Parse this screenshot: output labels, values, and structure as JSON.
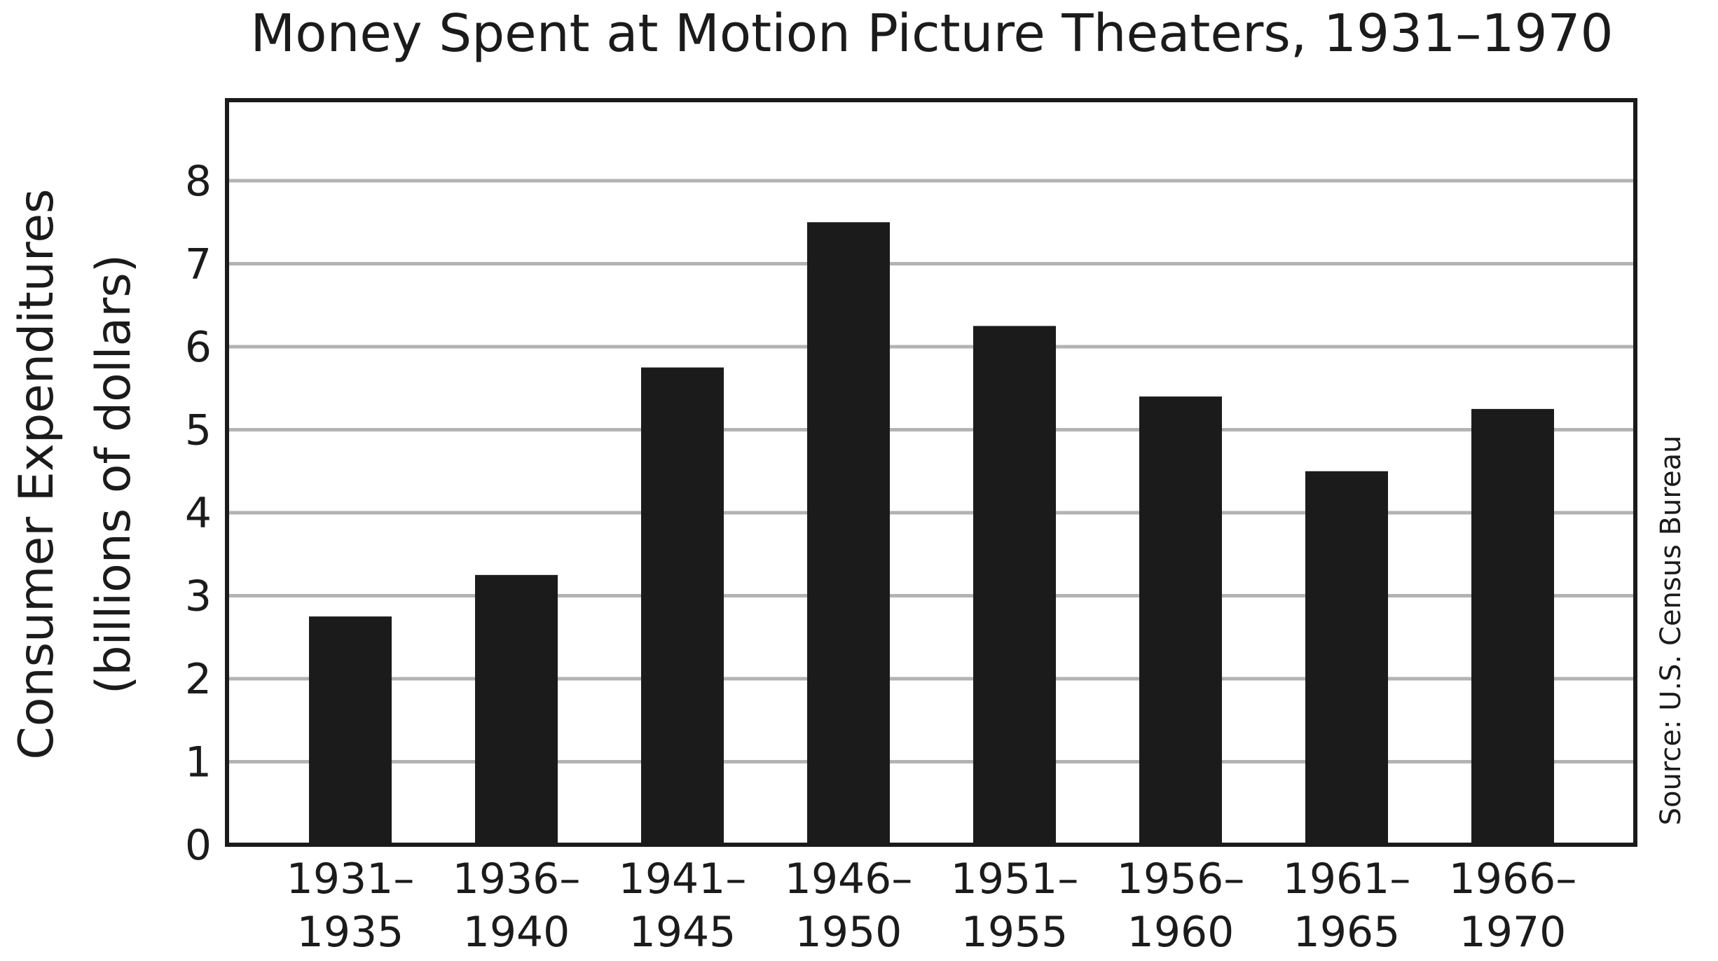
{
  "chart_data": {
    "type": "bar",
    "title": "Money Spent at Motion Picture Theaters, 1931–1970",
    "xlabel": "",
    "ylabel": [
      "Consumer Expenditures",
      "(billions of dollars)"
    ],
    "source": "Source: U.S. Census Bureau",
    "categories": [
      [
        "1931–",
        "1935"
      ],
      [
        "1936–",
        "1940"
      ],
      [
        "1941–",
        "1945"
      ],
      [
        "1946–",
        "1950"
      ],
      [
        "1951–",
        "1955"
      ],
      [
        "1956–",
        "1960"
      ],
      [
        "1961–",
        "1965"
      ],
      [
        "1966–",
        "1970"
      ]
    ],
    "values": [
      2.75,
      3.25,
      5.75,
      7.5,
      6.25,
      5.4,
      4.5,
      5.25
    ],
    "yticks": [
      0,
      1,
      2,
      3,
      4,
      5,
      6,
      7,
      8
    ],
    "ylim": [
      0,
      9
    ],
    "grid": true,
    "colors": {
      "bar": "#1b1b1b",
      "grid": "#b3b3b3",
      "frame": "#1b1b1b",
      "text": "#1b1b1b"
    }
  }
}
